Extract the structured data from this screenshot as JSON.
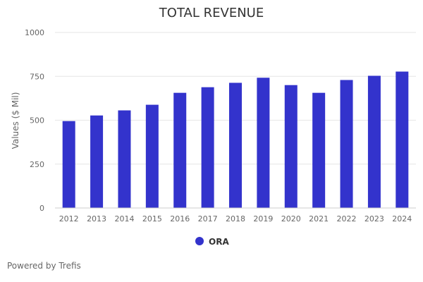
{
  "footer": {
    "credit": "Powered by Trefis"
  },
  "chart_data": {
    "type": "bar",
    "title": "TOTAL REVENUE",
    "xlabel": "",
    "ylabel": "Values ($ Mil)",
    "categories": [
      "2012",
      "2013",
      "2014",
      "2015",
      "2016",
      "2017",
      "2018",
      "2019",
      "2020",
      "2021",
      "2022",
      "2023",
      "2024"
    ],
    "series": [
      {
        "name": "ORA",
        "color": "#3333cc",
        "values": [
          495,
          527,
          556,
          588,
          656,
          688,
          713,
          742,
          700,
          656,
          729,
          753,
          777
        ]
      }
    ],
    "ylim": [
      0,
      1000
    ],
    "yticks": [
      0,
      250,
      500,
      750,
      1000
    ],
    "grid": true,
    "legend": "bottom-center"
  }
}
